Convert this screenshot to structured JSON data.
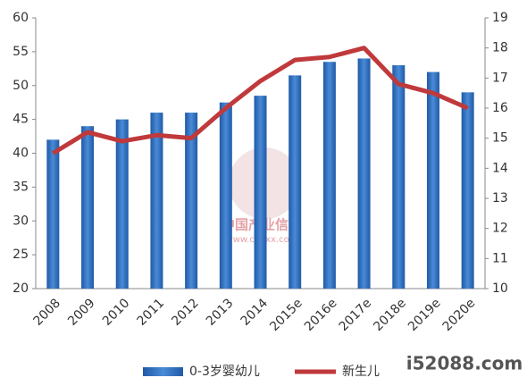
{
  "chart_data": {
    "type": "bar",
    "categories": [
      "2008",
      "2009",
      "2010",
      "2011",
      "2012",
      "2013",
      "2014",
      "2015e",
      "2016e",
      "2017e",
      "2018e",
      "2019e",
      "2020e"
    ],
    "series": [
      {
        "name": "0-3岁婴幼儿",
        "type": "bar",
        "color": "#2f6fba",
        "values": [
          42,
          44,
          45,
          46,
          46,
          47.5,
          48.5,
          51.5,
          53.5,
          54,
          53,
          52,
          49
        ]
      },
      {
        "name": "新生儿",
        "type": "line",
        "color": "#c0393b",
        "axis": "y2",
        "values": [
          14.5,
          15.2,
          14.9,
          15.1,
          15.0,
          16.0,
          16.9,
          17.6,
          17.7,
          18.0,
          16.8,
          16.5,
          16.0
        ]
      }
    ],
    "ylim": [
      20,
      60
    ],
    "yticks": [
      20,
      25,
      30,
      35,
      40,
      45,
      50,
      55,
      60
    ],
    "y2lim": [
      10,
      19
    ],
    "y2ticks": [
      10,
      11,
      12,
      13,
      14,
      15,
      16,
      17,
      18,
      19
    ],
    "watermarks": [
      "中国产业信息",
      "www.chyxx.com",
      "i52088.com"
    ]
  }
}
